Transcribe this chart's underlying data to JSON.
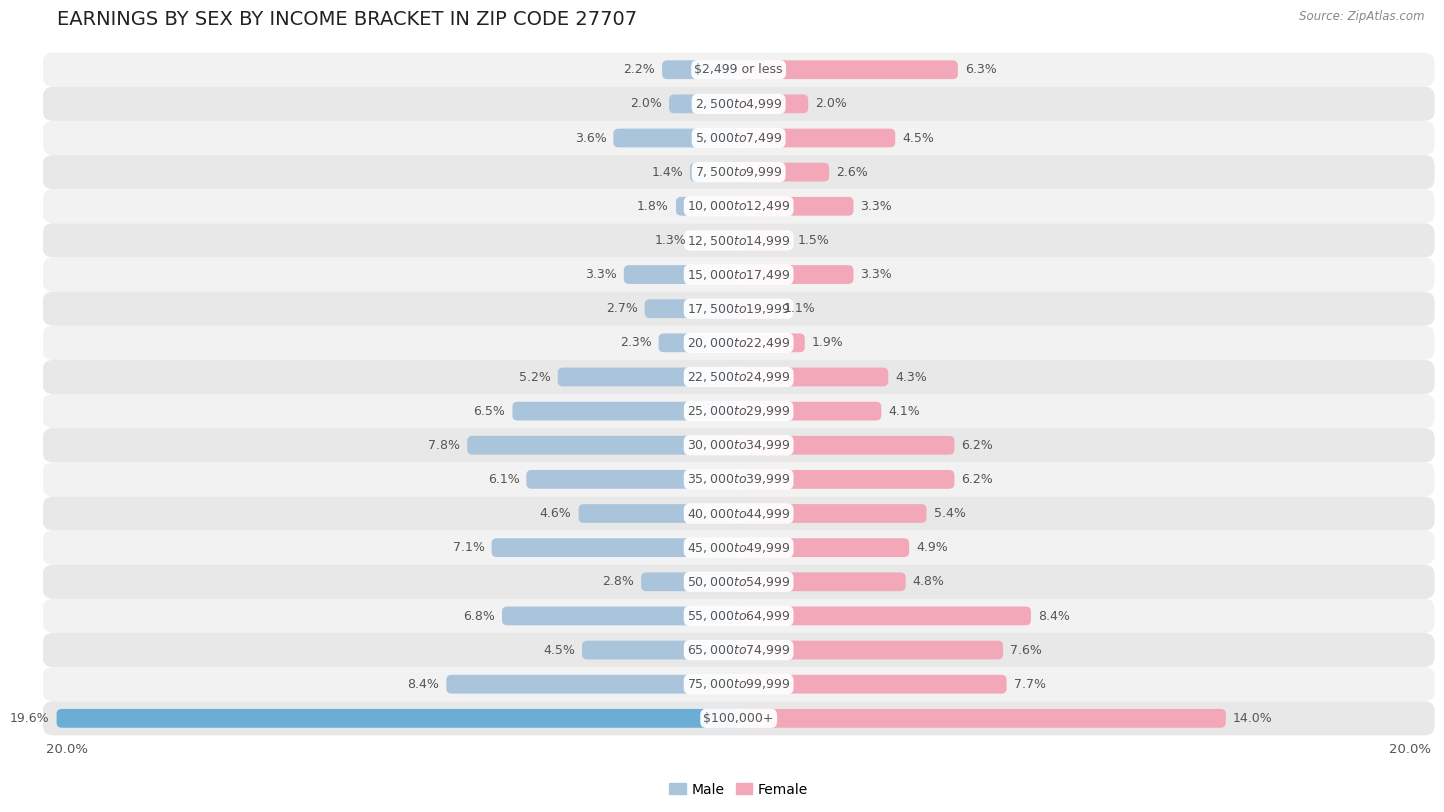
{
  "title": "EARNINGS BY SEX BY INCOME BRACKET IN ZIP CODE 27707",
  "source": "Source: ZipAtlas.com",
  "categories": [
    "$2,499 or less",
    "$2,500 to $4,999",
    "$5,000 to $7,499",
    "$7,500 to $9,999",
    "$10,000 to $12,499",
    "$12,500 to $14,999",
    "$15,000 to $17,499",
    "$17,500 to $19,999",
    "$20,000 to $22,499",
    "$22,500 to $24,999",
    "$25,000 to $29,999",
    "$30,000 to $34,999",
    "$35,000 to $39,999",
    "$40,000 to $44,999",
    "$45,000 to $49,999",
    "$50,000 to $54,999",
    "$55,000 to $64,999",
    "$65,000 to $74,999",
    "$75,000 to $99,999",
    "$100,000+"
  ],
  "male_values": [
    2.2,
    2.0,
    3.6,
    1.4,
    1.8,
    1.3,
    3.3,
    2.7,
    2.3,
    5.2,
    6.5,
    7.8,
    6.1,
    4.6,
    7.1,
    2.8,
    6.8,
    4.5,
    8.4,
    19.6
  ],
  "female_values": [
    6.3,
    2.0,
    4.5,
    2.6,
    3.3,
    1.5,
    3.3,
    1.1,
    1.9,
    4.3,
    4.1,
    6.2,
    6.2,
    5.4,
    4.9,
    4.8,
    8.4,
    7.6,
    7.7,
    14.0
  ],
  "male_color": "#aac4dc",
  "female_color": "#f2a8b8",
  "male_last_color": "#6aaed6",
  "female_last_color": "#f2a8b8",
  "row_colors": [
    "#f2f2f2",
    "#e8e8e8"
  ],
  "label_bg_color": "#ffffff",
  "label_text_color": "#555555",
  "value_text_color": "#555555",
  "xlim": 20.0,
  "bar_height": 0.55,
  "title_fontsize": 14,
  "label_fontsize": 9,
  "value_fontsize": 9,
  "tick_fontsize": 9.5,
  "legend_fontsize": 10
}
